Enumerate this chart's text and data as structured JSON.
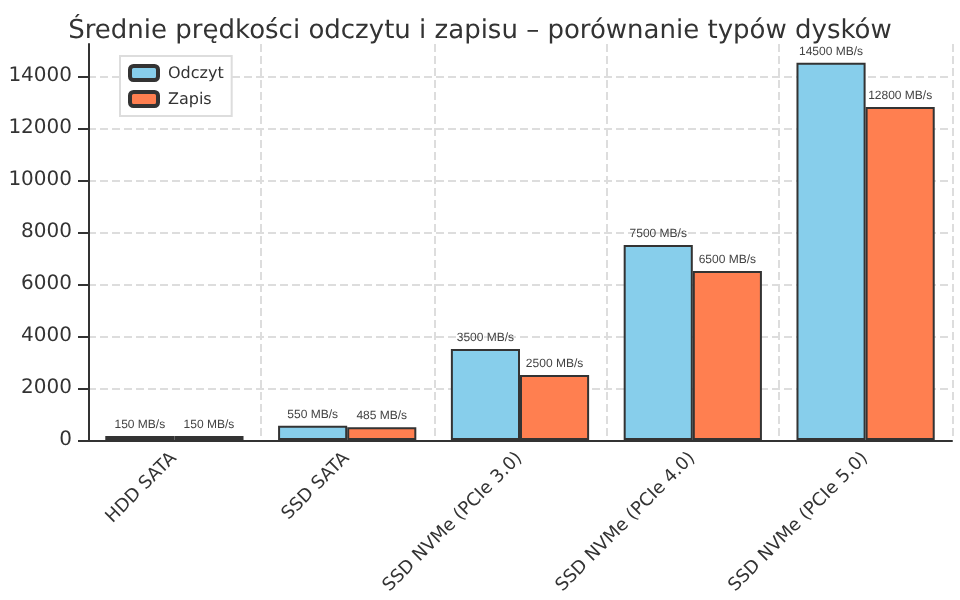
{
  "chart_data": {
    "type": "bar",
    "title": "Średnie prędkości odczytu i zapisu – porównanie typów dysków",
    "categories": [
      "HDD SATA",
      "SSD SATA",
      "SSD NVMe (PCIe 3.0)",
      "SSD NVMe (PCIe 4.0)",
      "SSD NVMe (PCIe 5.0)"
    ],
    "series": [
      {
        "name": "Odczyt",
        "color": "#87ceeb",
        "values": [
          150,
          550,
          3500,
          7500,
          14500
        ],
        "value_labels": [
          "150 MB/s",
          "550 MB/s",
          "3500 MB/s",
          "7500 MB/s",
          "14500 MB/s"
        ]
      },
      {
        "name": "Zapis",
        "color": "#ff7f50",
        "values": [
          150,
          485,
          2500,
          6500,
          12800
        ],
        "value_labels": [
          "150 MB/s",
          "485 MB/s",
          "2500 MB/s",
          "6500 MB/s",
          "12800 MB/s"
        ]
      }
    ],
    "ylim": [
      0,
      15225
    ],
    "yticks": [
      0,
      2000,
      4000,
      6000,
      8000,
      10000,
      12000,
      14000
    ],
    "grid": true,
    "legend": "top left"
  }
}
